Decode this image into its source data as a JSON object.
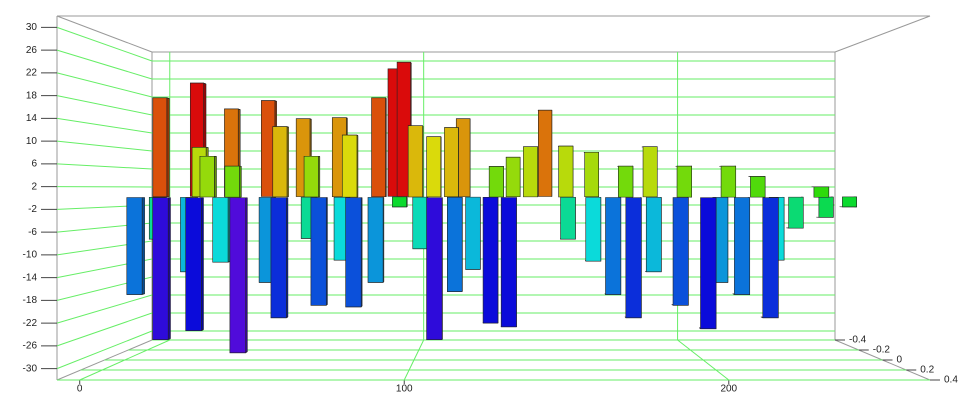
{
  "chart_data": {
    "type": "bar3d",
    "xlim": [
      -7,
      262
    ],
    "ylim": [
      -32,
      32
    ],
    "zlim": [
      -0.4,
      0.4
    ],
    "xticks": [
      0,
      100,
      200
    ],
    "yticks": [
      -30,
      -26,
      -22,
      -18,
      -14,
      -10,
      -6,
      -2,
      2,
      6,
      10,
      14,
      18,
      22,
      26,
      30
    ],
    "zticks": [
      -0.4,
      -0.2,
      0,
      0.2,
      0.4
    ],
    "grid": true,
    "grid_color": "#66ee66",
    "colormap": "rainbow",
    "x": [
      14,
      88,
      92,
      144,
      42,
      56,
      114,
      6,
      30,
      70,
      84,
      110,
      160,
      20,
      132,
      50,
      104,
      138,
      180,
      250,
      92,
      26,
      62,
      98,
      126,
      150,
      240,
      36,
      76,
      170,
      190,
      205,
      215,
      62,
      228,
      235,
      12,
      100,
      118,
      74,
      112,
      150,
      220,
      24,
      50,
      86,
      158,
      178,
      200,
      36,
      68,
      124,
      164,
      186,
      206,
      8,
      18,
      56,
      80,
      106,
      130,
      170,
      194,
      214,
      30,
      44
    ],
    "z": [
      -0.25,
      -0.25,
      -0.2,
      -0.2,
      -0.2,
      -0.15,
      -0.15,
      -0.1,
      -0.15,
      -0.1,
      -0.1,
      -0.1,
      -0.1,
      -0.1,
      -0.1,
      -0.05,
      -0.05,
      -0.05,
      -0.05,
      -0.05,
      -0.05,
      0,
      0,
      0,
      0,
      0,
      0,
      0.05,
      0.05,
      0.05,
      0.05,
      0.05,
      0.05,
      0.05,
      0.05,
      0.1,
      0.1,
      0.05,
      0.05,
      0.1,
      0.1,
      0.1,
      0.1,
      0.15,
      0.15,
      0.15,
      0.15,
      0.15,
      0.15,
      0.2,
      0.2,
      0.1,
      0.2,
      0.2,
      0.2,
      0.2,
      0.25,
      0.25,
      0.25,
      0.25,
      0.2,
      0.25,
      0.25,
      0.25,
      0.3,
      0.3
    ],
    "values": [
      24,
      27,
      28,
      18,
      20,
      16,
      16,
      20,
      18,
      16,
      20,
      14,
      9,
      10,
      8,
      14,
      12,
      10,
      10,
      -2,
      -2,
      8,
      8,
      14,
      6,
      10,
      -4,
      6,
      12,
      6,
      6,
      6,
      4,
      -8,
      -6,
      2,
      -8,
      -10,
      -14,
      -12,
      -18,
      -8,
      -12,
      -14,
      -16,
      -16,
      -12,
      -14,
      -16,
      -12,
      -20,
      -24,
      -18,
      -20,
      -18,
      -18,
      -26,
      -22,
      -20,
      -26,
      -24,
      -22,
      -24,
      -22,
      -24,
      -28
    ]
  }
}
